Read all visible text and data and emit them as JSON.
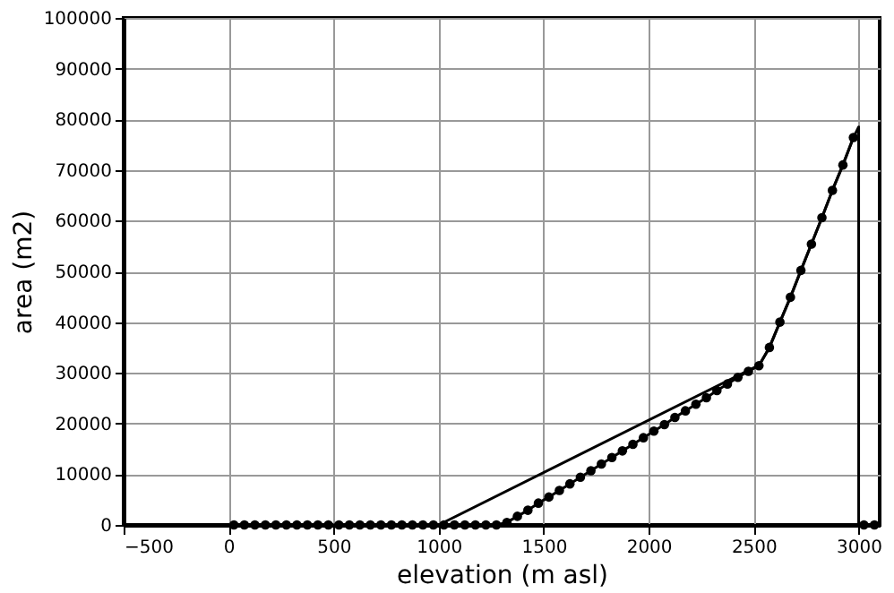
{
  "chart_data": {
    "type": "line",
    "xlabel": "elevation (m asl)",
    "ylabel": "area (m2)",
    "xlim": [
      -500,
      3100
    ],
    "xticks": [
      -500,
      0,
      500,
      1000,
      1500,
      2000,
      2500,
      3000
    ],
    "ylim": [
      0,
      100000
    ],
    "yticks": [
      0,
      10000,
      20000,
      30000,
      40000,
      50000,
      60000,
      70000,
      80000,
      90000,
      100000
    ],
    "grid": true,
    "series": [
      {
        "marker": "circle",
        "color": "#000000",
        "x": [
          25,
          75,
          125,
          175,
          225,
          275,
          325,
          375,
          425,
          475,
          525,
          575,
          625,
          675,
          725,
          775,
          825,
          875,
          925,
          975,
          1025,
          1075,
          1125,
          1175,
          1225,
          1275,
          1325,
          1375,
          1425,
          1475,
          1525,
          1575,
          1625,
          1675,
          1725,
          1775,
          1825,
          1875,
          1925,
          1975,
          2025,
          2075,
          2125,
          2175,
          2225,
          2275,
          2325,
          2375,
          2425,
          2475,
          2525,
          2575,
          2625,
          2675,
          2725,
          2775,
          2825,
          2875,
          2925,
          2975
        ],
        "values": [
          0,
          0,
          0,
          0,
          0,
          0,
          0,
          0,
          0,
          0,
          0,
          0,
          0,
          0,
          0,
          0,
          0,
          0,
          0,
          0,
          0,
          0,
          0,
          0,
          0,
          0,
          500,
          1700,
          2900,
          4300,
          5500,
          6800,
          8100,
          9400,
          10700,
          12000,
          13300,
          14600,
          15900,
          17200,
          18500,
          19800,
          21200,
          22500,
          23800,
          25100,
          26500,
          27800,
          29100,
          30300,
          31400,
          35000,
          40000,
          44900,
          50200,
          55400,
          60600,
          66000,
          71000,
          76400
        ]
      },
      {
        "type": "line",
        "marker": "none",
        "color": "#000000",
        "x": [
          1000,
          2500,
          2525,
          2575,
          2625,
          2675,
          2725,
          2775,
          2825,
          2875,
          2925,
          2975,
          3000,
          3000
        ],
        "values": [
          0,
          31000,
          31400,
          35000,
          40000,
          44900,
          50200,
          55400,
          60600,
          66000,
          71000,
          76400,
          78500,
          0
        ]
      },
      {
        "type": "scatter",
        "marker": "circle",
        "color": "#000000",
        "x": [
          3025,
          3075
        ],
        "values": [
          0,
          0
        ]
      }
    ]
  }
}
